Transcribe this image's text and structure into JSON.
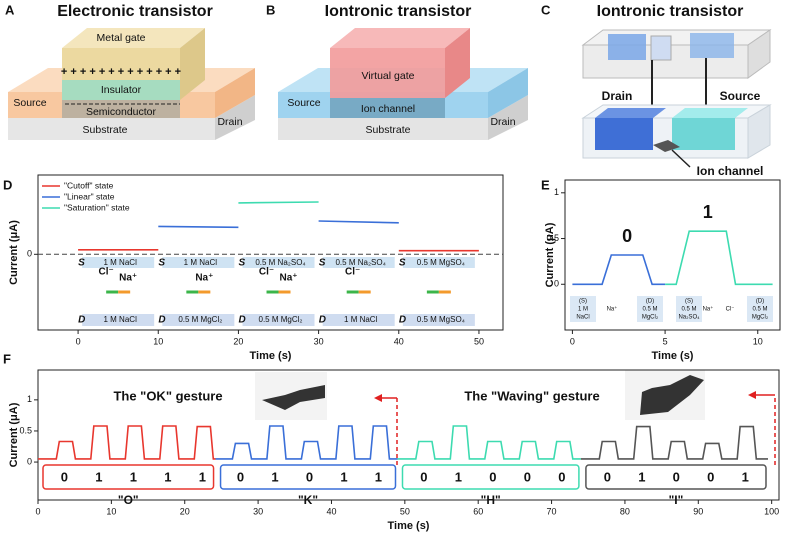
{
  "panels": {
    "A": {
      "label": "A",
      "title": "Electronic transistor",
      "metal_gate": "Metal gate",
      "charges": "+ + + + + + + + + + + + +",
      "insulator": "Insulator",
      "source": "Source",
      "semiconductor": "Semiconductor",
      "substrate": "Substrate",
      "drain": "Drain"
    },
    "B": {
      "label": "B",
      "title": "Iontronic transistor",
      "virtual_gate": "Virtual gate",
      "source": "Source",
      "ion_channel": "Ion channel",
      "substrate": "Substrate",
      "drain": "Drain"
    },
    "C": {
      "label": "C",
      "title": "Iontronic transistor",
      "drain": "Drain",
      "source": "Source",
      "ion_channel": "Ion channel"
    }
  },
  "chart_data": [
    {
      "label": "D",
      "type": "line",
      "x_label": "Time (s)",
      "y_label": "Current (μA)",
      "xlim": [
        -5,
        53
      ],
      "ylim": [
        -0.84,
        0.88
      ],
      "xticks": [
        0,
        10,
        20,
        30,
        40,
        50
      ],
      "yticks": [
        0
      ],
      "zero_line": true,
      "legend": "upper left",
      "series": [
        {
          "name": "\"Cutoff\" state",
          "color": "#e8372e",
          "x": [
            0,
            10,
            null,
            40,
            50
          ],
          "values": [
            0.05,
            0.05,
            null,
            0.04,
            0.04
          ]
        },
        {
          "name": "\"Linear\" state",
          "color": "#3a6fd8",
          "x": [
            10,
            20,
            null,
            30,
            40
          ],
          "values": [
            0.31,
            0.3,
            null,
            0.37,
            0.35
          ]
        },
        {
          "name": "\"Saturation\" state",
          "color": "#3ddbb0",
          "x": [
            20,
            30
          ],
          "values": [
            0.57,
            0.58
          ]
        }
      ],
      "source_mark": "S",
      "drain_mark": "D",
      "conditions": [
        {
          "source": "1 M NaCl",
          "drain": "1 M NaCl",
          "ions": [
            "Cl⁻",
            "Na⁺"
          ]
        },
        {
          "source": "1 M NaCl",
          "drain": "0.5 M MgCl₂",
          "ions": [
            "Na⁺"
          ]
        },
        {
          "source": "0.5 M Na₂SO₄",
          "drain": "0.5 M MgCl₂",
          "ions": [
            "Cl⁻",
            "Na⁺"
          ]
        },
        {
          "source": "0.5 M Na₂SO₄",
          "drain": "1 M NaCl",
          "ions": [
            "Cl⁻"
          ]
        },
        {
          "source": "0.5 M MgSO₄",
          "drain": "0.5 M MgSO₄",
          "ions": []
        }
      ]
    },
    {
      "label": "E",
      "type": "line",
      "x_label": "Time (s)",
      "y_label": "Current (μA)",
      "xlim": [
        -0.4,
        11.2
      ],
      "ylim": [
        -0.5,
        1.14
      ],
      "xticks": [
        0,
        5,
        10
      ],
      "yticks": [
        0,
        0.5,
        1
      ],
      "series": [
        {
          "color": "#3a6fd8",
          "x": [
            0,
            1.6,
            2.1,
            3.8,
            4.3,
            5
          ],
          "values": [
            0,
            0,
            0.32,
            0.32,
            0,
            0
          ]
        },
        {
          "color": "#3ddbb0",
          "x": [
            5,
            5.6,
            6.3,
            8.3,
            8.8,
            10.8
          ],
          "values": [
            0,
            0,
            0.58,
            0.58,
            0,
            0
          ]
        }
      ],
      "state_labels": [
        "0",
        "1"
      ],
      "annotations": [
        [
          "(S)",
          "1 M",
          "NaCl"
        ],
        [
          "Na⁺"
        ],
        [
          "(D)",
          "0.5 M",
          "MgCl₂"
        ],
        [
          "(S)",
          "0.5 M",
          "Na₂SO₄"
        ],
        [
          "Na⁺"
        ],
        [
          "Cl⁻"
        ],
        [
          "(D)",
          "0.5 M",
          "MgCl₂"
        ]
      ]
    },
    {
      "label": "F",
      "type": "line",
      "x_label": "Time (s)",
      "y_label": "Current (μA)",
      "xlim": [
        0,
        101
      ],
      "ylim": [
        -0.61,
        1.48
      ],
      "xticks": [
        0,
        10,
        20,
        30,
        40,
        50,
        60,
        70,
        80,
        90,
        100
      ],
      "yticks": [
        0,
        0.5,
        1
      ],
      "series": [
        {
          "color": "#e8372e",
          "x": [
            0,
            2.5,
            2.9,
            4.7,
            5.1,
            7.2,
            7.6,
            9.4,
            9.8,
            11.9,
            12.3,
            14.1,
            14.5,
            16.6,
            17,
            18.8,
            19.2,
            21.3,
            21.7,
            23.5,
            23.9,
            24.2
          ],
          "values": [
            0.05,
            0.05,
            0.33,
            0.33,
            0.05,
            0.05,
            0.58,
            0.58,
            0.05,
            0.05,
            0.58,
            0.58,
            0.05,
            0.05,
            0.58,
            0.58,
            0.05,
            0.05,
            0.57,
            0.57,
            0.05,
            0.05
          ]
        },
        {
          "color": "#3a6fd8",
          "x": [
            24.2,
            26.5,
            26.9,
            28.7,
            29.1,
            31.2,
            31.6,
            33.4,
            33.8,
            35.9,
            36.3,
            38.1,
            38.5,
            40.6,
            41,
            42.8,
            43.2,
            45.3,
            45.7,
            47.5,
            47.9,
            49
          ],
          "values": [
            0.05,
            0.05,
            0.3,
            0.3,
            0.05,
            0.05,
            0.58,
            0.58,
            0.05,
            0.05,
            0.33,
            0.33,
            0.05,
            0.05,
            0.58,
            0.58,
            0.05,
            0.05,
            0.58,
            0.58,
            0.05,
            0.05
          ]
        },
        {
          "color": "#3ddbb0",
          "x": [
            49,
            51.5,
            51.9,
            53.7,
            54.1,
            56.2,
            56.6,
            58.4,
            58.8,
            60.9,
            61.3,
            63.1,
            63.5,
            65.6,
            66,
            67.8,
            68.2,
            70.3,
            70.7,
            72.5,
            72.9,
            74
          ],
          "values": [
            0.05,
            0.05,
            0.33,
            0.33,
            0.05,
            0.05,
            0.58,
            0.58,
            0.05,
            0.05,
            0.33,
            0.33,
            0.05,
            0.05,
            0.33,
            0.33,
            0.05,
            0.05,
            0.33,
            0.33,
            0.05,
            0.05
          ]
        },
        {
          "color": "#555555",
          "x": [
            74,
            76.5,
            76.9,
            78.7,
            79.1,
            81.2,
            81.6,
            83.4,
            83.8,
            85.9,
            86.3,
            88.1,
            88.5,
            90.6,
            91,
            92.8,
            93.2,
            95.3,
            95.7,
            97.5,
            97.9,
            99.5
          ],
          "values": [
            0.05,
            0.05,
            0.33,
            0.33,
            0.05,
            0.05,
            0.57,
            0.57,
            0.05,
            0.05,
            0.33,
            0.33,
            0.05,
            0.05,
            0.3,
            0.3,
            0.05,
            0.05,
            0.57,
            0.57,
            0.05,
            0.05
          ]
        }
      ],
      "bits": [
        [
          "0",
          "1",
          "1",
          "1",
          "1"
        ],
        [
          "0",
          "1",
          "0",
          "1",
          "1"
        ],
        [
          "0",
          "1",
          "0",
          "0",
          "0"
        ],
        [
          "0",
          "1",
          "0",
          "0",
          "1"
        ]
      ],
      "words": [
        "\"O\"",
        "\"K\"",
        "\"H\"",
        "\"I\""
      ],
      "gestures": [
        "The \"OK\" gesture",
        "The \"Waving\" gesture"
      ]
    }
  ]
}
